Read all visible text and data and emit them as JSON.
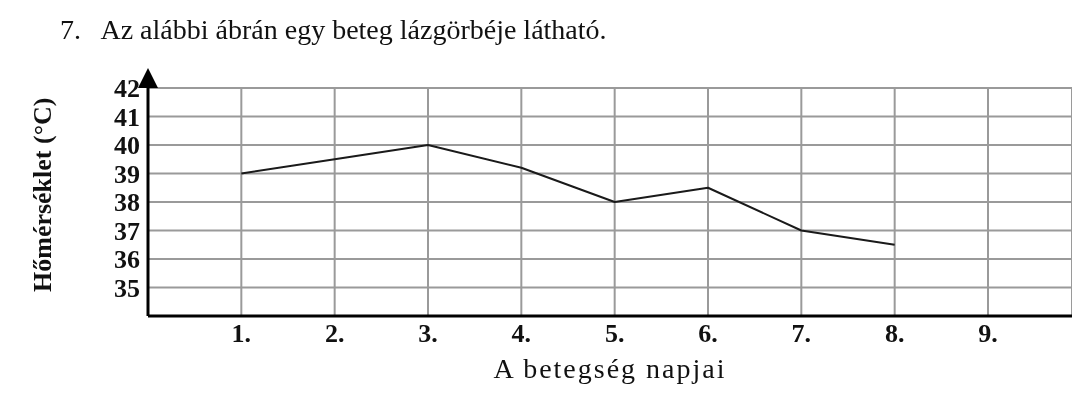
{
  "chart_data": {
    "type": "line",
    "title": "7.   Az alábbi ábrán egy beteg lázgörbéje látható.",
    "xlabel": "A betegség napjai",
    "ylabel": "Hőmérséklet (°C)",
    "categories": [
      "1.",
      "2.",
      "3.",
      "4.",
      "5.",
      "6.",
      "7.",
      "8.",
      "9."
    ],
    "series": [
      {
        "color": "#1a1a1a",
        "values": [
          39,
          39.5,
          40,
          39.2,
          38,
          38.5,
          37,
          36.5,
          null
        ]
      }
    ],
    "ylim": [
      34,
      42
    ],
    "yticks": [
      35,
      36,
      37,
      38,
      39,
      40,
      41,
      42
    ],
    "grid": true,
    "marker": "none",
    "line_style": "solid"
  }
}
